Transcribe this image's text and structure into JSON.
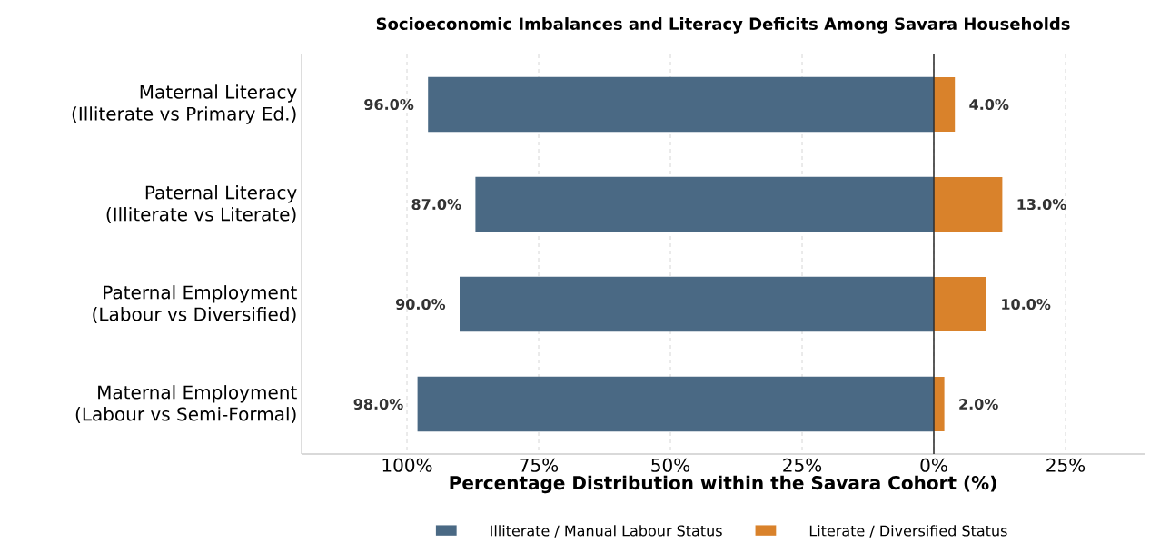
{
  "chart_data": {
    "type": "bar",
    "orientation": "horizontal",
    "title": "Socioeconomic Imbalances and Literacy Deficits Among Savara Households",
    "xlabel": "Percentage Distribution within the Savara Cohort (%)",
    "categories": [
      "Maternal Literacy\n(Illiterate vs Primary Ed.)",
      "Paternal Literacy\n(Illiterate vs Literate)",
      "Paternal Employment\n(Labour vs Diversified)",
      "Maternal Employment\n(Labour vs Semi-Formal)"
    ],
    "series": [
      {
        "name": "Illiterate / Manual Labour Status",
        "color": "#4a6984",
        "values": [
          96,
          87,
          90,
          98
        ],
        "base": [
          -96,
          -87,
          -90,
          -98
        ],
        "value_labels": [
          "96.0%",
          "87.0%",
          "90.0%",
          "98.0%"
        ]
      },
      {
        "name": "Literate / Diversified Status",
        "color": "#d9822b",
        "values": [
          4,
          13,
          10,
          2
        ],
        "value_labels": [
          "4.0%",
          "13.0%",
          "10.0%",
          "2.0%"
        ]
      }
    ],
    "xlim": [
      -120,
      40
    ],
    "xticks": [
      {
        "value": -100,
        "label": "100%"
      },
      {
        "value": -75,
        "label": "75%"
      },
      {
        "value": -50,
        "label": "50%"
      },
      {
        "value": -25,
        "label": "25%"
      },
      {
        "value": 0,
        "label": "0%"
      },
      {
        "value": 25,
        "label": "25%"
      }
    ],
    "ref_lines": [
      {
        "axis": "x",
        "value": 0,
        "color": "#333333"
      }
    ],
    "grid": "x",
    "legend": "bottom"
  }
}
